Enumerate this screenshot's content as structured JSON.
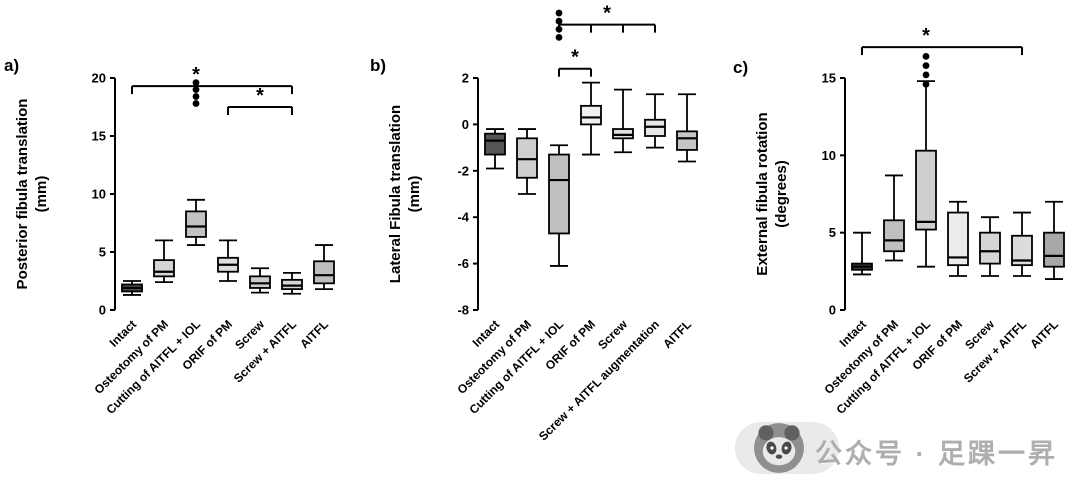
{
  "watermark": {
    "text": "公众号 · 足踝一昇",
    "logo_icon": "panda-logo"
  },
  "chart_data": [
    {
      "type": "box",
      "panel_label": "a)",
      "ylabel_line1": "Posterior fibula translation",
      "ylabel_line2": "(mm)",
      "ylim": [
        0,
        20
      ],
      "yticks": [
        0,
        5,
        10,
        15,
        20
      ],
      "categories": [
        "Intact",
        "Osteotomy of PM",
        "Cutting of AITFL + IOL",
        "ORIF of PM",
        "Screw",
        "Screw + AITFL",
        "AITFL"
      ],
      "boxes": [
        {
          "whislo": 1.3,
          "q1": 1.6,
          "med": 1.9,
          "q3": 2.2,
          "whishi": 2.5,
          "fill": "#4a4a4a"
        },
        {
          "whislo": 2.4,
          "q1": 2.9,
          "med": 3.3,
          "q3": 4.3,
          "whishi": 6.0,
          "fill": "#d6d6d6"
        },
        {
          "whislo": 5.6,
          "q1": 6.3,
          "med": 7.2,
          "q3": 8.5,
          "whishi": 9.5,
          "fill": "#c2c2c2"
        },
        {
          "whislo": 2.5,
          "q1": 3.3,
          "med": 3.9,
          "q3": 4.5,
          "whishi": 6.0,
          "fill": "#dedede"
        },
        {
          "whislo": 1.5,
          "q1": 1.9,
          "med": 2.3,
          "q3": 2.9,
          "whishi": 3.6,
          "fill": "#cccccc"
        },
        {
          "whislo": 1.4,
          "q1": 1.8,
          "med": 2.1,
          "q3": 2.6,
          "whishi": 3.2,
          "fill": "#d6d6d6"
        },
        {
          "whislo": 1.8,
          "q1": 2.3,
          "med": 3.0,
          "q3": 4.2,
          "whishi": 5.6,
          "fill": "#bdbdbd"
        }
      ],
      "significance": [
        {
          "from": 0,
          "to": 5,
          "y": 19.3,
          "label": "*",
          "label_at": 2
        },
        {
          "from": 3,
          "to": 5,
          "y": 17.5,
          "label": "*"
        }
      ],
      "dots": {
        "category": 2,
        "values": [
          19.6,
          19.0,
          18.4,
          17.8
        ]
      }
    },
    {
      "type": "box",
      "panel_label": "b)",
      "ylabel_line1": "Lateral Fibula translation",
      "ylabel_line2": "(mm)",
      "ylim": [
        -8,
        2
      ],
      "yticks": [
        2,
        0,
        -2,
        -4,
        -6,
        -8
      ],
      "categories": [
        "Intact",
        "Osteotomy of PM",
        "Cutting of AITFL + IOL",
        "ORIF of PM",
        "Screw",
        "Screw + AITFL augmentation",
        "AITFL"
      ],
      "boxes": [
        {
          "whislo": -1.9,
          "q1": -1.3,
          "med": -0.7,
          "q3": -0.4,
          "whishi": -0.2,
          "fill": "#555555"
        },
        {
          "whislo": -3.0,
          "q1": -2.3,
          "med": -1.5,
          "q3": -0.6,
          "whishi": -0.2,
          "fill": "#cfcfcf"
        },
        {
          "whislo": -6.1,
          "q1": -4.7,
          "med": -2.4,
          "q3": -1.3,
          "whishi": -0.9,
          "fill": "#bfbfbf"
        },
        {
          "whislo": -1.3,
          "q1": 0.0,
          "med": 0.3,
          "q3": 0.8,
          "whishi": 1.8,
          "fill": "#f0f0f0"
        },
        {
          "whislo": -1.2,
          "q1": -0.6,
          "med": -0.45,
          "q3": -0.2,
          "whishi": 1.5,
          "fill": "#e0e0e0"
        },
        {
          "whislo": -1.0,
          "q1": -0.5,
          "med": -0.1,
          "q3": 0.2,
          "whishi": 1.3,
          "fill": "#e6e6e6"
        },
        {
          "whislo": -1.6,
          "q1": -1.1,
          "med": -0.6,
          "q3": -0.3,
          "whishi": 1.3,
          "fill": "#c6c6c6"
        }
      ],
      "significance": [
        {
          "from": 2,
          "to": 3,
          "y": 2.4,
          "label": "*"
        },
        {
          "from": 2,
          "to": 5,
          "y": 4.3,
          "label": "*",
          "label_at": 3.5,
          "ticks": [
            3,
            4
          ]
        }
      ],
      "dots": {
        "category": 2,
        "values": [
          4.8,
          4.45,
          4.1,
          3.75
        ]
      }
    },
    {
      "type": "box",
      "panel_label": "c)",
      "ylabel_line1": "External fibula rotation",
      "ylabel_line2": "(degrees)",
      "ylim": [
        0,
        15
      ],
      "yticks": [
        0,
        5,
        10,
        15
      ],
      "categories": [
        "Intact",
        "Osteotomy of PM",
        "Cutting of AITFL + IOL",
        "ORIF of PM",
        "Screw",
        "Screw + AITFL",
        "AITFL"
      ],
      "boxes": [
        {
          "whislo": 2.3,
          "q1": 2.6,
          "med": 2.8,
          "q3": 3.0,
          "whishi": 5.0,
          "fill": "#3f3f3f"
        },
        {
          "whislo": 3.2,
          "q1": 3.8,
          "med": 4.5,
          "q3": 5.8,
          "whishi": 8.7,
          "fill": "#bfbfbf"
        },
        {
          "whislo": 2.8,
          "q1": 5.2,
          "med": 5.7,
          "q3": 10.3,
          "whishi": 14.8,
          "fill": "#cfcfcf"
        },
        {
          "whislo": 2.2,
          "q1": 2.9,
          "med": 3.4,
          "q3": 6.3,
          "whishi": 7.0,
          "fill": "#ececec"
        },
        {
          "whislo": 2.2,
          "q1": 3.0,
          "med": 3.8,
          "q3": 5.0,
          "whishi": 6.0,
          "fill": "#d6d6d6"
        },
        {
          "whislo": 2.2,
          "q1": 2.9,
          "med": 3.2,
          "q3": 4.8,
          "whishi": 6.3,
          "fill": "#dcdcdc"
        },
        {
          "whislo": 2.0,
          "q1": 2.8,
          "med": 3.5,
          "q3": 5.0,
          "whishi": 7.0,
          "fill": "#a8a8a8"
        }
      ],
      "significance": [
        {
          "from": 0,
          "to": 5,
          "y": 17.0,
          "label": "*",
          "label_at": 2
        }
      ],
      "dots": {
        "category": 2,
        "values": [
          16.4,
          15.8,
          15.2,
          14.6
        ]
      }
    }
  ]
}
